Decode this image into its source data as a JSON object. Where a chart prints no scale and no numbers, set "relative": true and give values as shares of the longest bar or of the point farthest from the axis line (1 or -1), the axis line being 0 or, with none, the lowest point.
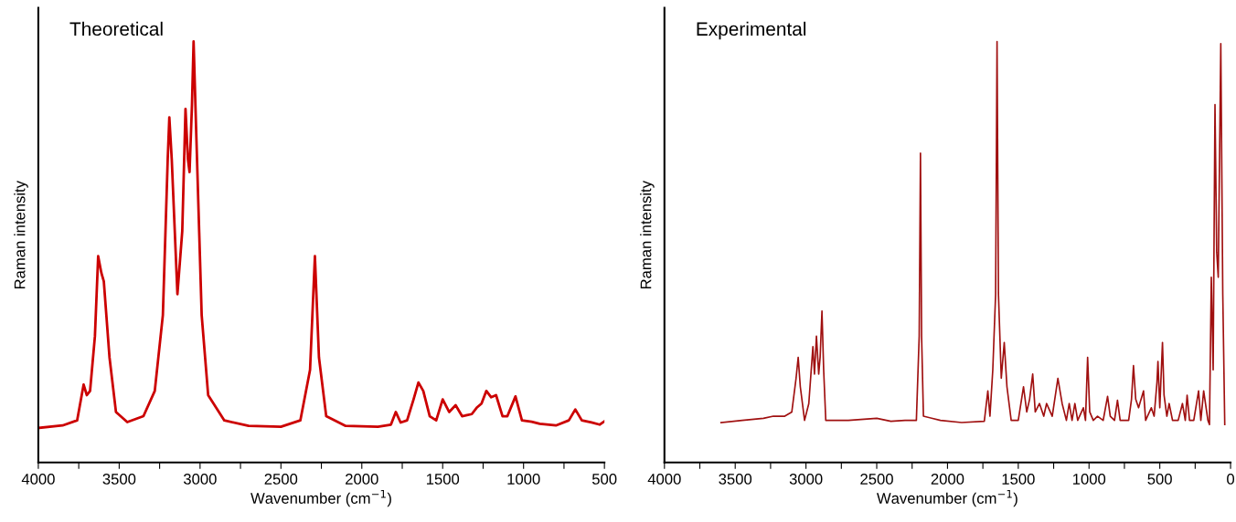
{
  "chart_data": [
    {
      "type": "line",
      "title": "Theoretical",
      "xlabel": "Wavenumber (cm$^{−1}$)",
      "ylabel": "Raman intensity",
      "relative": true,
      "tick_labels": "x",
      "grid": false,
      "marker": "none",
      "line_style": "solid",
      "xlim": [
        4000,
        500
      ],
      "xticks": [
        4000,
        {
          "value": 3750,
          "label": null
        },
        3500,
        {
          "value": 3250,
          "label": null
        },
        3000,
        {
          "value": 2750,
          "label": null
        },
        2500,
        {
          "value": 2250,
          "label": null
        },
        2000,
        {
          "value": 1750,
          "label": null
        },
        1500,
        {
          "value": 1250,
          "label": null
        },
        1000,
        {
          "value": 750,
          "label": null
        },
        500
      ],
      "series": [
        {
          "color": "#cc0000",
          "x": [
            4000,
            3850,
            3760,
            3720,
            3700,
            3680,
            3650,
            3630,
            3610,
            3595,
            3560,
            3520,
            3450,
            3350,
            3280,
            3230,
            3200,
            3190,
            3175,
            3140,
            3110,
            3090,
            3075,
            3065,
            3050,
            3040,
            3025,
            2990,
            2950,
            2850,
            2700,
            2500,
            2380,
            2320,
            2290,
            2265,
            2220,
            2100,
            1900,
            1820,
            1790,
            1760,
            1720,
            1680,
            1650,
            1620,
            1580,
            1540,
            1500,
            1460,
            1420,
            1380,
            1320,
            1290,
            1260,
            1230,
            1200,
            1170,
            1130,
            1100,
            1050,
            1010,
            950,
            900,
            800,
            720,
            680,
            640,
            580,
            530,
            500
          ],
          "values": [
            0.082,
            0.088,
            0.1,
            0.185,
            0.16,
            0.17,
            0.3,
            0.49,
            0.45,
            0.43,
            0.25,
            0.12,
            0.096,
            0.11,
            0.17,
            0.35,
            0.72,
            0.82,
            0.72,
            0.4,
            0.55,
            0.84,
            0.72,
            0.69,
            0.85,
            1.0,
            0.8,
            0.35,
            0.16,
            0.1,
            0.087,
            0.085,
            0.1,
            0.22,
            0.49,
            0.25,
            0.11,
            0.087,
            0.085,
            0.09,
            0.12,
            0.095,
            0.1,
            0.15,
            0.19,
            0.17,
            0.11,
            0.1,
            0.15,
            0.12,
            0.136,
            0.11,
            0.115,
            0.13,
            0.14,
            0.17,
            0.155,
            0.16,
            0.11,
            0.11,
            0.157,
            0.1,
            0.097,
            0.092,
            0.088,
            0.1,
            0.126,
            0.1,
            0.095,
            0.09,
            0.098
          ]
        }
      ]
    },
    {
      "type": "line",
      "title": "Experimental",
      "xlabel": "Wavenumber (cm$^{−1}$)",
      "ylabel": "Raman intensity",
      "relative": true,
      "tick_labels": "x",
      "grid": false,
      "marker": "none",
      "line_style": "solid",
      "xlim": [
        4000,
        0
      ],
      "xticks": [
        4000,
        {
          "value": 3750,
          "label": null
        },
        3500,
        {
          "value": 3250,
          "label": null
        },
        3000,
        {
          "value": 2750,
          "label": null
        },
        2500,
        {
          "value": 2250,
          "label": null
        },
        2000,
        {
          "value": 1750,
          "label": null
        },
        1500,
        {
          "value": 1250,
          "label": null
        },
        1000,
        {
          "value": 750,
          "label": null
        },
        500,
        {
          "value": 250,
          "label": null
        },
        0
      ],
      "series": [
        {
          "color": "#a01010",
          "x": [
            3600,
            3450,
            3300,
            3230,
            3150,
            3100,
            3070,
            3055,
            3040,
            3010,
            2980,
            2951,
            2940,
            2926,
            2910,
            2900,
            2887,
            2875,
            2860,
            2700,
            2500,
            2400,
            2300,
            2220,
            2200,
            2191,
            2183,
            2170,
            2050,
            1900,
            1740,
            1715,
            1700,
            1680,
            1660,
            1650,
            1640,
            1620,
            1599,
            1580,
            1550,
            1500,
            1463,
            1440,
            1420,
            1398,
            1380,
            1350,
            1320,
            1300,
            1260,
            1220,
            1190,
            1160,
            1140,
            1120,
            1100,
            1080,
            1040,
            1025,
            1010,
            995,
            970,
            940,
            900,
            869,
            850,
            820,
            799,
            780,
            720,
            700,
            686,
            670,
            650,
            615,
            600,
            560,
            540,
            520,
            513,
            500,
            481,
            470,
            450,
            434,
            410,
            370,
            340,
            320,
            307,
            290,
            260,
            226,
            210,
            190,
            160,
            149,
            136,
            123,
            110,
            98,
            87,
            69,
            55,
            41
          ],
          "values": [
            0.095,
            0.1,
            0.105,
            0.11,
            0.11,
            0.12,
            0.2,
            0.25,
            0.18,
            0.1,
            0.14,
            0.275,
            0.21,
            0.3,
            0.21,
            0.25,
            0.36,
            0.22,
            0.1,
            0.1,
            0.105,
            0.098,
            0.1,
            0.1,
            0.3,
            0.735,
            0.3,
            0.11,
            0.1,
            0.095,
            0.098,
            0.17,
            0.11,
            0.22,
            0.4,
            1.0,
            0.4,
            0.2,
            0.285,
            0.18,
            0.1,
            0.1,
            0.18,
            0.12,
            0.15,
            0.21,
            0.12,
            0.14,
            0.11,
            0.14,
            0.11,
            0.2,
            0.14,
            0.1,
            0.14,
            0.1,
            0.14,
            0.1,
            0.13,
            0.1,
            0.25,
            0.12,
            0.1,
            0.11,
            0.1,
            0.157,
            0.11,
            0.1,
            0.148,
            0.1,
            0.1,
            0.15,
            0.23,
            0.15,
            0.13,
            0.17,
            0.1,
            0.13,
            0.11,
            0.19,
            0.24,
            0.13,
            0.285,
            0.16,
            0.11,
            0.14,
            0.1,
            0.1,
            0.14,
            0.1,
            0.16,
            0.1,
            0.1,
            0.17,
            0.1,
            0.17,
            0.1,
            0.09,
            0.44,
            0.22,
            0.85,
            0.5,
            0.44,
            0.995,
            0.4,
            0.09
          ]
        }
      ]
    }
  ]
}
